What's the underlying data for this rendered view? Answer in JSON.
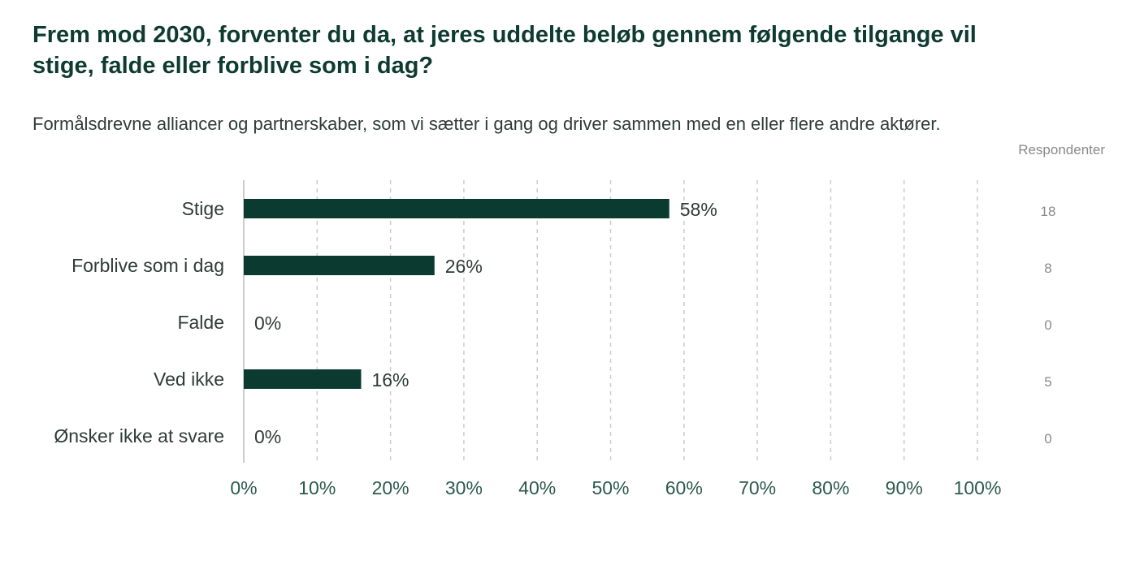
{
  "chart_data": {
    "type": "bar",
    "orientation": "horizontal",
    "title": "Frem mod 2030, forventer du da, at jeres uddelte beløb gennem følgende tilgange vil stige, falde eller forblive som i dag?",
    "subtitle": "Formålsdrevne alliancer og partnerskaber, som vi sætter i gang og driver sammen med en eller flere andre aktører.",
    "categories": [
      "Stige",
      "Forblive som i dag",
      "Falde",
      "Ved ikke",
      "Ønsker ikke at svare"
    ],
    "values": [
      58,
      26,
      0,
      16,
      0
    ],
    "value_labels": [
      "58%",
      "26%",
      "0%",
      "16%",
      "0%"
    ],
    "respondents_header": "Respondenter",
    "respondents": [
      "18",
      "8",
      "0",
      "5",
      "0"
    ],
    "xlim": [
      0,
      100
    ],
    "xticks": [
      "0%",
      "10%",
      "20%",
      "30%",
      "40%",
      "50%",
      "60%",
      "70%",
      "80%",
      "90%",
      "100%"
    ],
    "grid": true,
    "bar_color": "#0b3b30",
    "grid_color": "#cccccc"
  }
}
